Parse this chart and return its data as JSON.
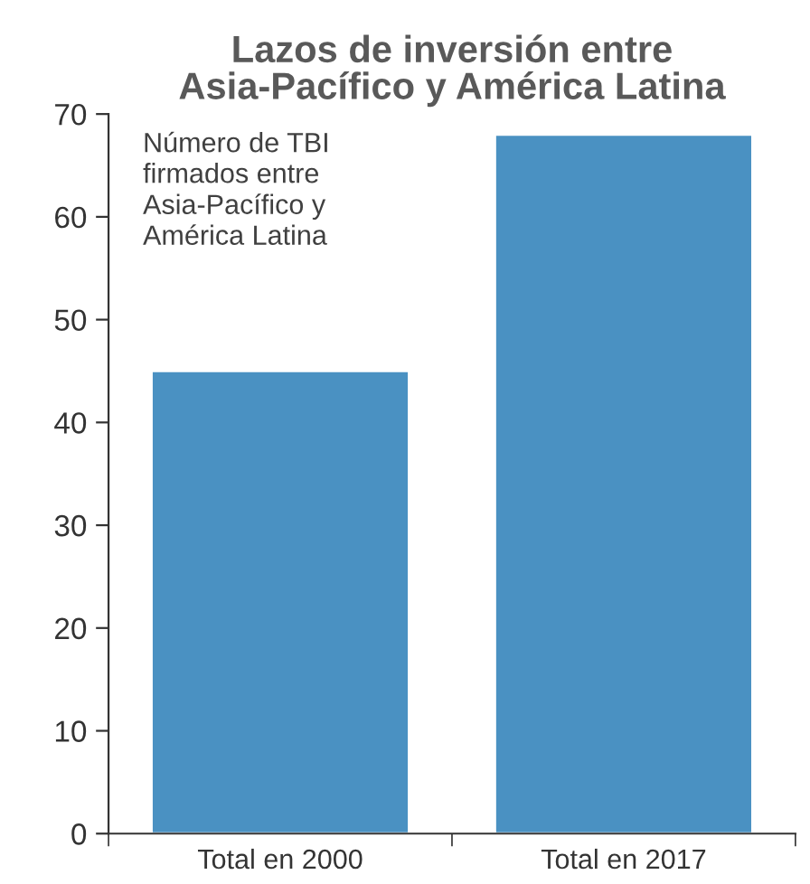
{
  "chart_data": {
    "type": "bar",
    "title": "Lazos de inversión entre\nAsia-Pacífico y América Latina",
    "categories": [
      "Total en 2000",
      "Total en 2017"
    ],
    "values": [
      45,
      68
    ],
    "color": "#4a91c2",
    "ylim": [
      0,
      70
    ],
    "yticks": [
      0,
      10,
      20,
      30,
      40,
      50,
      60,
      70
    ],
    "grid": false,
    "legend": false,
    "annotations": [
      "Número de TBI\nfirmados entre\nAsia-Pacífico y\nAmérica Latina"
    ]
  }
}
